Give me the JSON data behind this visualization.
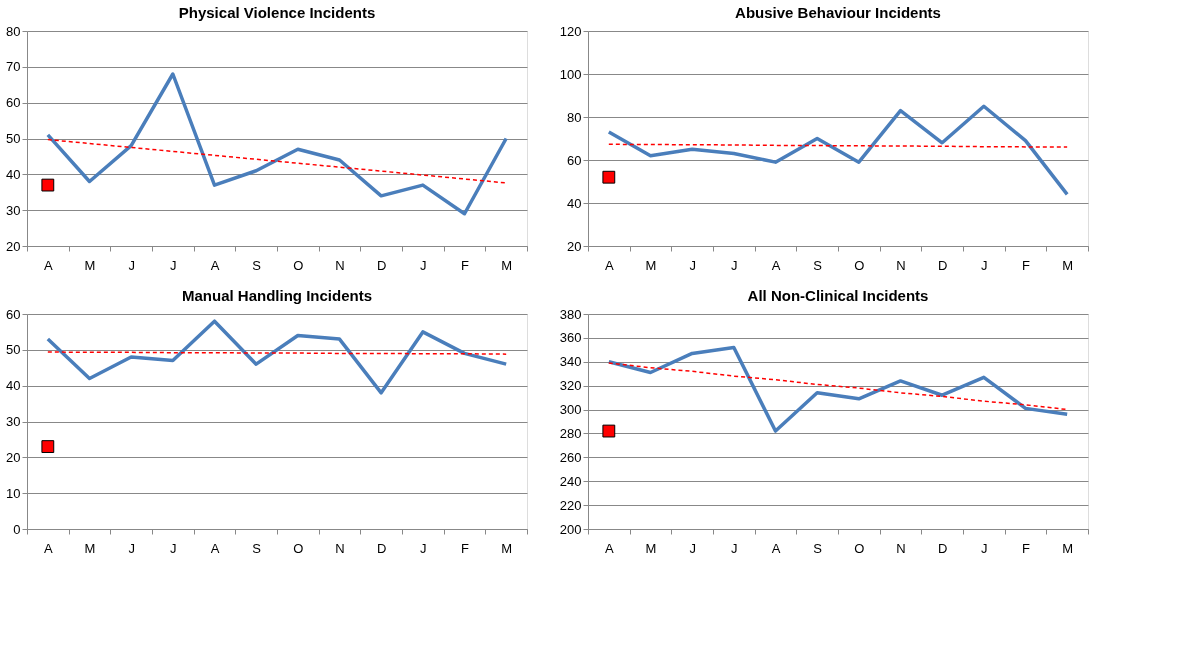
{
  "chart_data": [
    {
      "type": "line",
      "title": "Physical Violence Incidents",
      "categories": [
        "A",
        "M",
        "J",
        "J",
        "A",
        "S",
        "O",
        "N",
        "D",
        "J",
        "F",
        "M"
      ],
      "ylim": [
        20,
        80
      ],
      "yticks": [
        20,
        30,
        40,
        50,
        60,
        70,
        80
      ],
      "grid": "y",
      "series": [
        {
          "color": "#4a7ebb",
          "marker": "none",
          "line_style": "solid",
          "values": [
            51,
            38,
            48,
            68,
            37,
            41,
            47,
            44,
            34,
            37,
            29,
            50
          ]
        },
        {
          "color": "#ff0000",
          "marker": "none",
          "line_style": "dashed",
          "values": [
            49.7,
            48.6,
            47.5,
            46.4,
            45.3,
            44.2,
            43.1,
            42.0,
            40.9,
            39.8,
            38.7,
            37.6
          ]
        },
        {
          "type": "scatter",
          "color": "#ff0000",
          "marker": "square",
          "values": [
            37,
            null,
            null,
            null,
            null,
            null,
            null,
            null,
            null,
            null,
            null,
            null
          ]
        }
      ]
    },
    {
      "type": "line",
      "title": "Abusive Behaviour Incidents",
      "categories": [
        "A",
        "M",
        "J",
        "J",
        "A",
        "S",
        "O",
        "N",
        "D",
        "J",
        "F",
        "M"
      ],
      "ylim": [
        20,
        120
      ],
      "yticks": [
        20,
        40,
        60,
        80,
        100,
        120
      ],
      "grid": "y",
      "series": [
        {
          "color": "#4a7ebb",
          "marker": "none",
          "line_style": "solid",
          "values": [
            73,
            62,
            65,
            63,
            59,
            70,
            59,
            83,
            68,
            85,
            69,
            44
          ]
        },
        {
          "color": "#ff0000",
          "marker": "none",
          "line_style": "dashed",
          "values": [
            67.3,
            67.2,
            67.1,
            67.0,
            66.8,
            66.7,
            66.6,
            66.5,
            66.4,
            66.2,
            66.1,
            66.0
          ]
        },
        {
          "type": "scatter",
          "color": "#ff0000",
          "marker": "square",
          "values": [
            52,
            null,
            null,
            null,
            null,
            null,
            null,
            null,
            null,
            null,
            null,
            null
          ]
        }
      ]
    },
    {
      "type": "line",
      "title": "Manual Handling Incidents",
      "categories": [
        "A",
        "M",
        "J",
        "J",
        "A",
        "S",
        "O",
        "N",
        "D",
        "J",
        "F",
        "M"
      ],
      "ylim": [
        0,
        60
      ],
      "yticks": [
        0,
        10,
        20,
        30,
        40,
        50,
        60
      ],
      "grid": "y",
      "series": [
        {
          "color": "#4a7ebb",
          "marker": "none",
          "line_style": "solid",
          "values": [
            53,
            42,
            48,
            47,
            58,
            46,
            54,
            53,
            38,
            55,
            49,
            46
          ]
        },
        {
          "color": "#ff0000",
          "marker": "none",
          "line_style": "dashed",
          "values": [
            49.4,
            49.3,
            49.3,
            49.2,
            49.2,
            49.1,
            49.1,
            49.0,
            49.0,
            48.9,
            48.9,
            48.8
          ]
        },
        {
          "type": "scatter",
          "color": "#ff0000",
          "marker": "square",
          "values": [
            23,
            null,
            null,
            null,
            null,
            null,
            null,
            null,
            null,
            null,
            null,
            null
          ]
        }
      ]
    },
    {
      "type": "line",
      "title": "All Non-Clinical Incidents",
      "categories": [
        "A",
        "M",
        "J",
        "J",
        "A",
        "S",
        "O",
        "N",
        "D",
        "J",
        "F",
        "M"
      ],
      "ylim": [
        200,
        380
      ],
      "yticks": [
        200,
        220,
        240,
        260,
        280,
        300,
        320,
        340,
        360,
        380
      ],
      "grid": "y",
      "series": [
        {
          "color": "#4a7ebb",
          "marker": "none",
          "line_style": "solid",
          "values": [
            340,
            331,
            347,
            352,
            282,
            314,
            309,
            324,
            312,
            327,
            301,
            296
          ]
        },
        {
          "color": "#ff0000",
          "marker": "none",
          "line_style": "dashed",
          "values": [
            339,
            335,
            332,
            328,
            325,
            321,
            318,
            314,
            311,
            307,
            304,
            300
          ]
        },
        {
          "type": "scatter",
          "color": "#ff0000",
          "marker": "square",
          "values": [
            282,
            null,
            null,
            null,
            null,
            null,
            null,
            null,
            null,
            null,
            null,
            null
          ]
        }
      ]
    }
  ]
}
